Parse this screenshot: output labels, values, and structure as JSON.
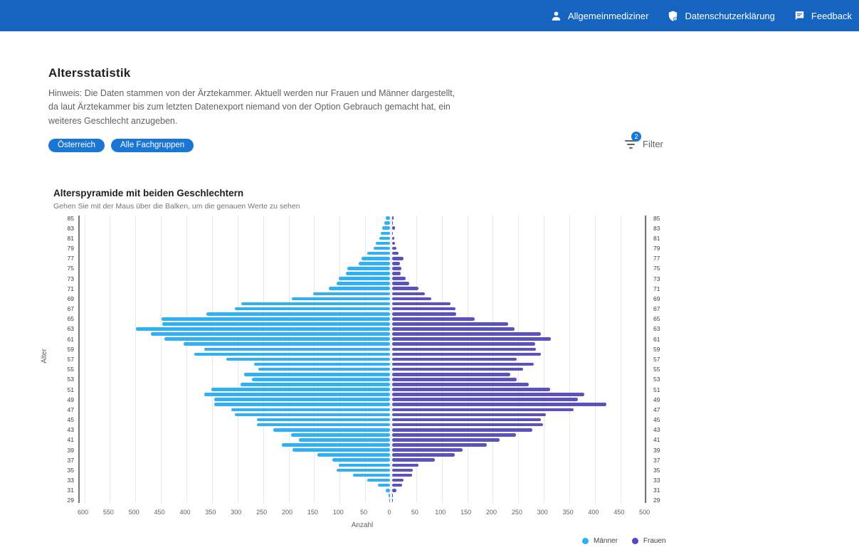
{
  "header": {
    "items": [
      {
        "icon": "person-icon",
        "label": "Allgemeinmediziner"
      },
      {
        "icon": "privacy-icon",
        "label": "Datenschutzerklärung"
      },
      {
        "icon": "feedback-icon",
        "label": "Feedback"
      }
    ],
    "bg_color": "#1565c0"
  },
  "page": {
    "title": "Altersstatistik",
    "hint": "Hinweis: Die Daten stammen von der Ärztekammer. Aktuell werden nur Frauen und Männer dargestellt, da laut Ärztekammer bis zum letzten Datenexport niemand von der Option Gebrauch gemacht hat, ein weiteres Geschlecht anzugeben.",
    "chips": [
      "Österreich",
      "Alle Fachgruppen"
    ],
    "filter": {
      "label": "Filter",
      "badge": "2"
    }
  },
  "chart_data": {
    "type": "bar",
    "variant": "population_pyramid",
    "title": "Alterspyramide mit beiden Geschlechtern",
    "subtitle": "Gehen Sie mit der Maus über die Balken, um die genauen Werte zu sehen",
    "xlabel": "Anzahl",
    "ylabel": "Alter",
    "grid": true,
    "legend_position": "bottom-right",
    "x_ticks_left": [
      600,
      550,
      500,
      450,
      400,
      350,
      300,
      250,
      200,
      150,
      100,
      50
    ],
    "x_tick_zero": 0,
    "x_ticks_right": [
      50,
      100,
      150,
      200,
      250,
      300,
      350,
      400,
      450,
      500
    ],
    "xlim_left": 600,
    "xlim_right": 500,
    "ages": [
      85,
      84,
      83,
      82,
      81,
      80,
      79,
      78,
      77,
      76,
      75,
      74,
      73,
      72,
      71,
      70,
      69,
      68,
      67,
      66,
      65,
      64,
      63,
      62,
      61,
      60,
      59,
      58,
      57,
      56,
      55,
      54,
      53,
      52,
      51,
      50,
      49,
      48,
      47,
      46,
      45,
      44,
      43,
      42,
      41,
      40,
      39,
      38,
      37,
      36,
      35,
      34,
      33,
      32,
      31,
      30,
      29
    ],
    "age_label_step": 2,
    "series": [
      {
        "name": "Männer",
        "side": "left",
        "color": "#2fb1f3",
        "legend_color": "#29b2f3",
        "values": [
          9,
          11,
          15,
          18,
          21,
          28,
          32,
          45,
          56,
          62,
          84,
          86,
          100,
          105,
          120,
          151,
          193,
          291,
          304,
          359,
          448,
          446,
          498,
          468,
          442,
          404,
          364,
          384,
          320,
          266,
          258,
          286,
          271,
          293,
          350,
          364,
          344,
          344,
          311,
          304,
          260,
          260,
          228,
          194,
          178,
          212,
          191,
          142,
          113,
          100,
          104,
          73,
          44,
          23,
          8,
          3,
          1
        ]
      },
      {
        "name": "Frauen",
        "side": "right",
        "color": "#5c52bd",
        "legend_color": "#5348c8",
        "values": [
          3,
          1,
          5,
          2,
          4,
          6,
          8,
          13,
          22,
          15,
          18,
          17,
          26,
          33,
          51,
          64,
          76,
          114,
          124,
          126,
          162,
          227,
          240,
          291,
          311,
          280,
          282,
          291,
          244,
          278,
          257,
          231,
          244,
          267,
          310,
          376,
          364,
          420,
          355,
          301,
          291,
          295,
          275,
          242,
          211,
          186,
          138,
          123,
          84,
          52,
          41,
          39,
          22,
          20,
          8,
          1,
          1
        ]
      }
    ]
  }
}
